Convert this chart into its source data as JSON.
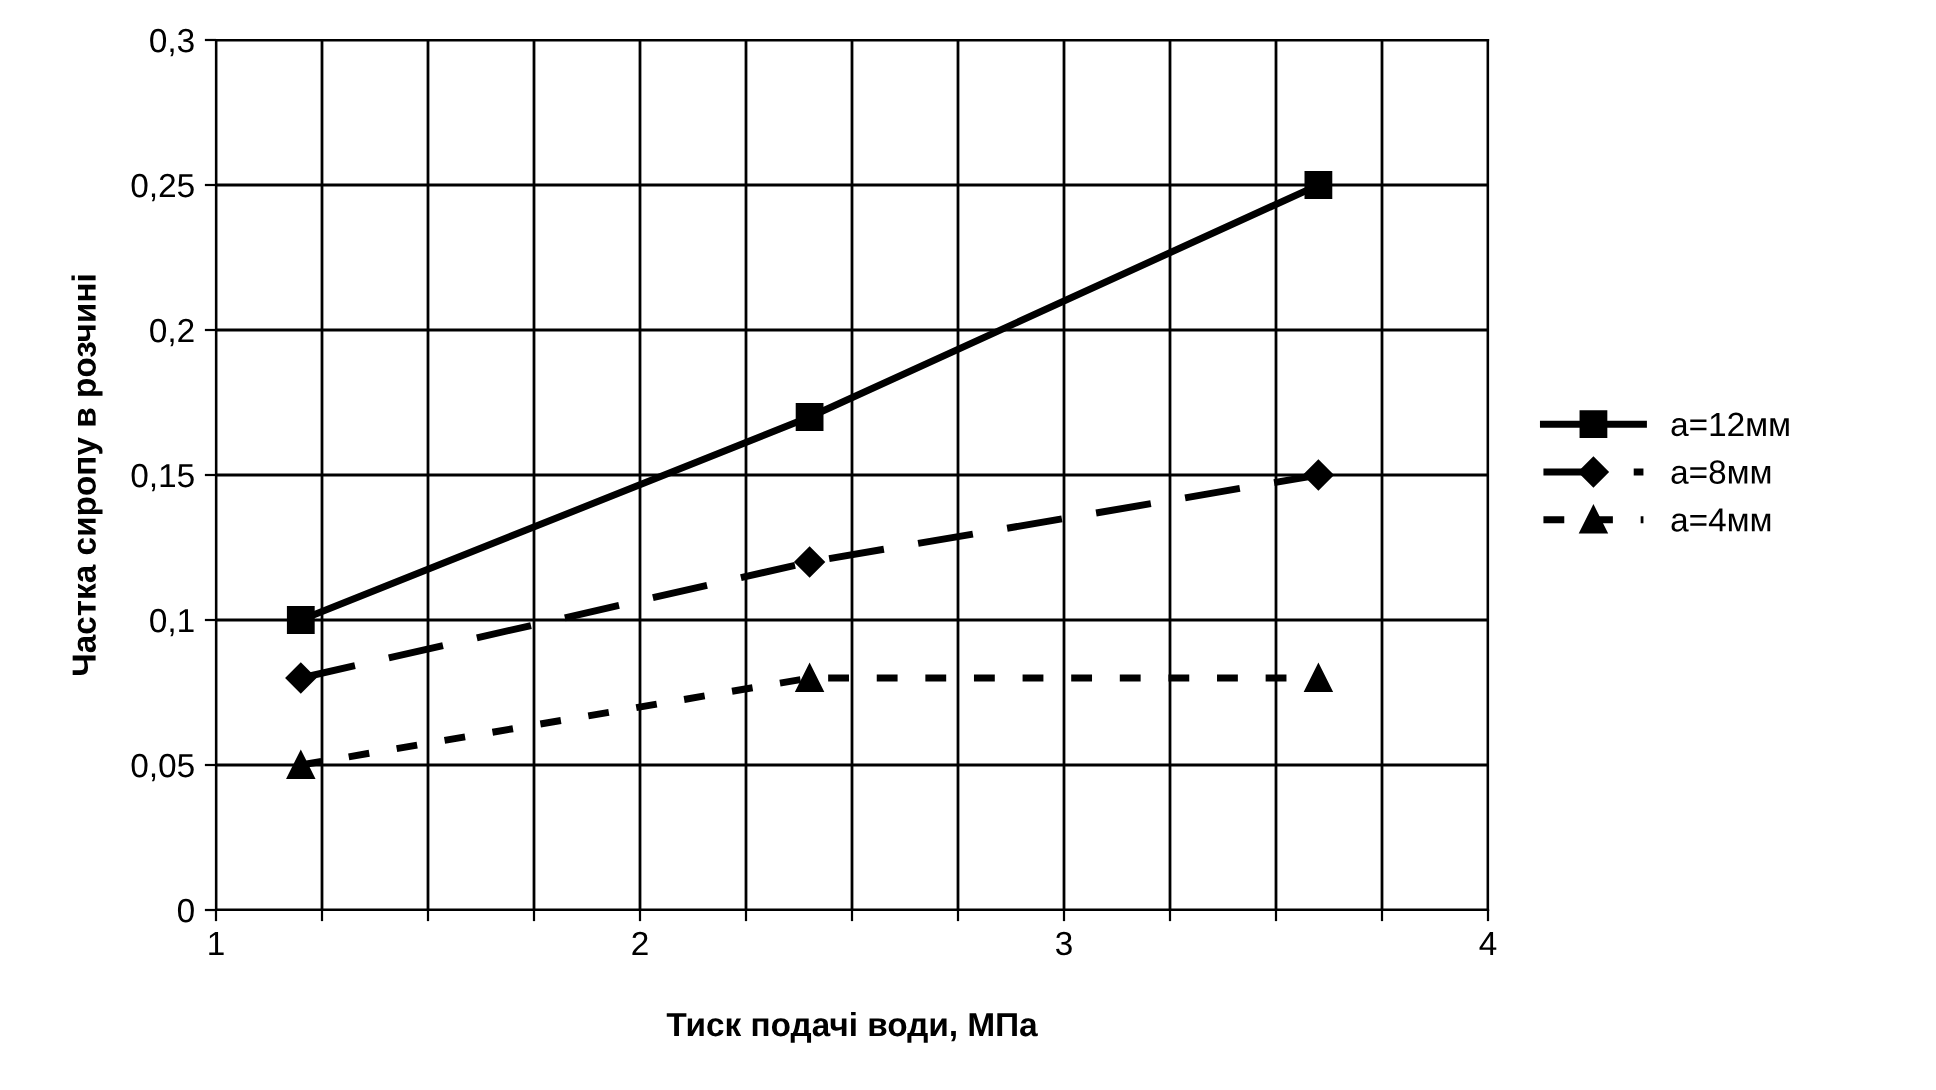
{
  "chart_data": {
    "type": "line",
    "xlabel": "Тиск подачі води, МПа",
    "ylabel": "Частка сиропу в розчині",
    "x": [
      1.2,
      2.4,
      3.6
    ],
    "series": [
      {
        "name": "а=12мм",
        "color": "#000000",
        "values": [
          0.1,
          0.17,
          0.25
        ],
        "marker": "square",
        "line_style": "solid"
      },
      {
        "name": "а=8мм",
        "color": "#000000",
        "values": [
          0.08,
          0.12,
          0.15
        ],
        "marker": "diamond",
        "line_style": "dashed"
      },
      {
        "name": "а=4мм",
        "color": "#000000",
        "values": [
          0.05,
          0.08,
          0.08
        ],
        "marker": "triangle",
        "line_style": "dotted"
      }
    ],
    "xlim": [
      1,
      4
    ],
    "ylim": [
      0,
      0.3
    ],
    "xticks": [
      1,
      {
        "value": 1.25,
        "label": null
      },
      {
        "value": 1.5,
        "label": null
      },
      {
        "value": 1.75,
        "label": null
      },
      2,
      {
        "value": 2.25,
        "label": null
      },
      {
        "value": 2.5,
        "label": null
      },
      {
        "value": 2.75,
        "label": null
      },
      3,
      {
        "value": 3.25,
        "label": null
      },
      {
        "value": 3.5,
        "label": null
      },
      {
        "value": 3.75,
        "label": null
      },
      4
    ],
    "yticks": [
      {
        "value": 0,
        "label": "0"
      },
      {
        "value": 0.05,
        "label": "0,05"
      },
      {
        "value": 0.1,
        "label": "0,1"
      },
      {
        "value": 0.15,
        "label": "0,15"
      },
      {
        "value": 0.2,
        "label": "0,2"
      },
      {
        "value": 0.25,
        "label": "0,25"
      },
      {
        "value": 0.3,
        "label": "0,3"
      }
    ],
    "grid": true,
    "legend": "right"
  }
}
